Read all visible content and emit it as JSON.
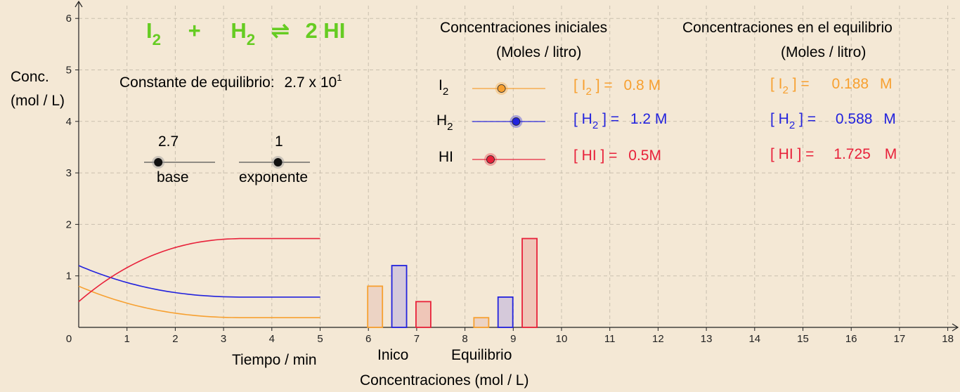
{
  "reaction": {
    "r1": "I",
    "r1_sub": "2",
    "plus": "+",
    "r2": "H",
    "r2_sub": "2",
    "arrow": "⇌",
    "product": "2 HI",
    "color": "#66cc22"
  },
  "constant": {
    "label": "Constante de equilibrio:",
    "base": "2.7",
    "times_ten": "x 10",
    "exp": "1"
  },
  "sliders": {
    "base": {
      "value": "2.7",
      "label": "base",
      "fraction": 0.2
    },
    "exp": {
      "value": "1",
      "label": "exponente",
      "fraction": 0.55
    }
  },
  "ylabel": {
    "line1": "Conc.",
    "line2": "(mol / L)"
  },
  "initial": {
    "title1": "Concentraciones iniciales",
    "title2": "(Moles / litro)",
    "rows": [
      {
        "species": "I",
        "sub": "2",
        "color": "#f7a030",
        "fraction": 0.4,
        "bracket": "[ I",
        "bsub": "2",
        "bclose": " ] =",
        "value": "0.8 M"
      },
      {
        "species": "H",
        "sub": "2",
        "color": "#2222dd",
        "fraction": 0.6,
        "bracket": "[ H",
        "bsub": "2",
        "bclose": " ] =",
        "value": "1.2 M"
      },
      {
        "species": "HI",
        "sub": "",
        "color": "#e8213a",
        "fraction": 0.25,
        "bracket": "[ HI ] =",
        "bsub": "",
        "bclose": "",
        "value": "0.5M"
      }
    ]
  },
  "equilibrium": {
    "title1": "Concentraciones en el equilibrio",
    "title2": "(Moles / litro)",
    "rows": [
      {
        "bracket": "[ I",
        "bsub": "2",
        "bclose": " ] =",
        "value": "0.188",
        "unit": "M",
        "color": "#f7a030"
      },
      {
        "bracket": "[ H",
        "bsub": "2",
        "bclose": " ] =",
        "value": "0.588",
        "unit": "M",
        "color": "#2222dd"
      },
      {
        "bracket": "[ HI ] =",
        "bsub": "",
        "bclose": "",
        "value": "1.725",
        "unit": "M",
        "color": "#e8213a"
      }
    ]
  },
  "labels": {
    "time": "Tiempo / min",
    "inicio": "Inico",
    "equilibrio": "Equilibrio",
    "conc": "Concentraciones (mol / L)"
  },
  "chart_data": {
    "type": "line",
    "xlim": [
      0,
      18
    ],
    "ylim": [
      0,
      6
    ],
    "xticks": [
      "1",
      "2",
      "3",
      "4",
      "5",
      "6",
      "7",
      "8",
      "9",
      "10",
      "11",
      "12",
      "13",
      "14",
      "15",
      "16",
      "17",
      "18"
    ],
    "yticks": [
      "1",
      "2",
      "3",
      "4",
      "5",
      "6"
    ],
    "origin_label": "0",
    "grid": true,
    "series": [
      {
        "color": "#f7a030",
        "x": [
          0,
          3.5,
          5
        ],
        "y": [
          0.8,
          0.188,
          0.188
        ]
      },
      {
        "color": "#2222dd",
        "x": [
          0,
          3.5,
          5
        ],
        "y": [
          1.2,
          0.588,
          0.588
        ]
      },
      {
        "color": "#e8213a",
        "x": [
          0,
          3.5,
          5
        ],
        "y": [
          0.5,
          1.725,
          1.725
        ]
      }
    ],
    "bars": [
      {
        "x": 6.0,
        "value": 0.8,
        "color": "#f7a030",
        "fill": "#ecd3c4"
      },
      {
        "x": 6.5,
        "value": 1.2,
        "color": "#2222dd",
        "fill": "#d5c9da"
      },
      {
        "x": 7.0,
        "value": 0.5,
        "color": "#e8213a",
        "fill": "#efc6b8"
      },
      {
        "x": 8.2,
        "value": 0.188,
        "color": "#f7a030",
        "fill": "#ecd3c4"
      },
      {
        "x": 8.7,
        "value": 0.588,
        "color": "#2222dd",
        "fill": "#d5c9da"
      },
      {
        "x": 9.2,
        "value": 1.725,
        "color": "#e8213a",
        "fill": "#efc6b8"
      }
    ]
  }
}
